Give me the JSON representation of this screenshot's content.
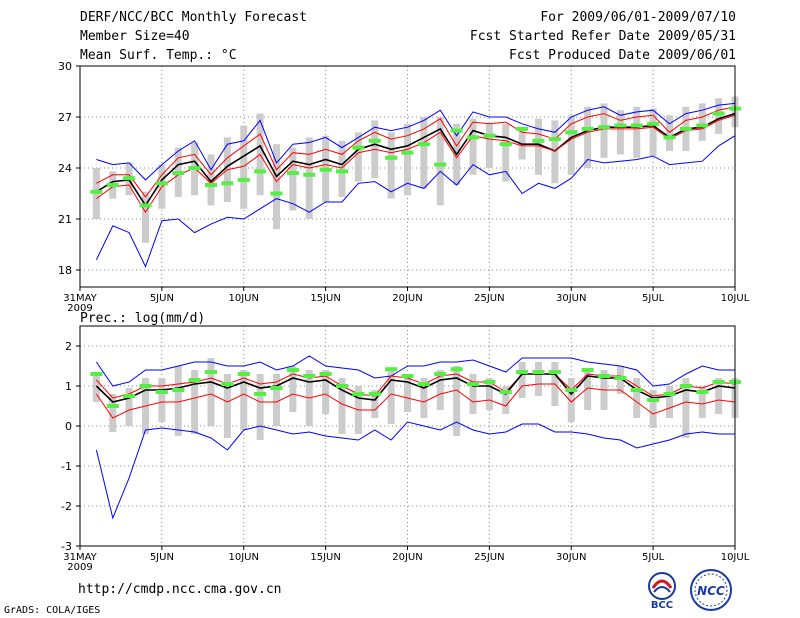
{
  "header": {
    "title": "DERF/NCC/BCC Monthly Forecast",
    "members": "Member Size=40",
    "variable": "Mean Surf. Temp.: °C",
    "period": "For 2009/06/01-2009/07/10",
    "started": "Fcst Started Refer Date 2009/05/31",
    "produced": "Fcst Produced Date 2009/06/01"
  },
  "lower_label": "Prec.: log(mm/d)",
  "footer": {
    "url": "http://cmdp.ncc.cma.gov.cn",
    "credit": "GrADS: COLA/IGES"
  },
  "logos": {
    "bcc": "BCC",
    "ncc": "NCC"
  },
  "colors": {
    "envelope": "#0000ff",
    "spread": "#ff0000",
    "mean": "#000000",
    "observed": "#55ee44",
    "box": "#cccccc",
    "grid": "#888888"
  },
  "chart_data": [
    {
      "type": "line",
      "title": "Mean Surf. Temp.: °C",
      "x_days": 41,
      "x_ticks": [
        {
          "day": 0,
          "label": "31MAY",
          "sub": "2009"
        },
        {
          "day": 5,
          "label": "5JUN"
        },
        {
          "day": 10,
          "label": "10JUN"
        },
        {
          "day": 15,
          "label": "15JUN"
        },
        {
          "day": 20,
          "label": "20JUN"
        },
        {
          "day": 25,
          "label": "25JUN"
        },
        {
          "day": 30,
          "label": "30JUN"
        },
        {
          "day": 35,
          "label": "5JUL"
        },
        {
          "day": 40,
          "label": "10JUL"
        }
      ],
      "ylim": [
        17,
        30
      ],
      "yticks": [
        18,
        21,
        24,
        27,
        30
      ],
      "grid": true,
      "series": [
        {
          "name": "ensemble max",
          "color": "#0000ff",
          "start_day": 1,
          "values": [
            24.5,
            24.2,
            24.3,
            23.3,
            24.2,
            25.0,
            25.6,
            23.9,
            25.4,
            25.6,
            26.8,
            24.3,
            25.4,
            25.5,
            25.8,
            25.2,
            25.8,
            26.4,
            26.2,
            26.4,
            26.8,
            27.4,
            25.9,
            27.3,
            27.0,
            27.0,
            26.6,
            26.3,
            26.1,
            27.0,
            27.4,
            27.6,
            27.1,
            27.3,
            27.4,
            26.6,
            27.2,
            27.4,
            27.7,
            27.8
          ]
        },
        {
          "name": "ensemble upper",
          "color": "#ff0000",
          "start_day": 1,
          "values": [
            23.1,
            23.6,
            23.6,
            22.3,
            23.6,
            24.6,
            24.8,
            23.6,
            24.6,
            25.3,
            26.0,
            23.9,
            24.9,
            24.8,
            25.1,
            24.8,
            25.6,
            26.1,
            25.7,
            25.9,
            26.3,
            26.9,
            25.3,
            26.7,
            26.6,
            26.7,
            26.1,
            26.0,
            25.7,
            26.6,
            27.0,
            27.2,
            26.8,
            27.0,
            27.1,
            26.1,
            26.8,
            27.0,
            27.4,
            27.6
          ]
        },
        {
          "name": "ensemble mean",
          "color": "#000000",
          "start_day": 1,
          "values": [
            22.6,
            23.2,
            23.3,
            21.8,
            23.3,
            24.2,
            24.4,
            23.2,
            24.1,
            24.7,
            25.3,
            23.5,
            24.4,
            24.2,
            24.5,
            24.2,
            25.1,
            25.4,
            25.1,
            25.3,
            25.8,
            26.3,
            24.8,
            26.2,
            25.9,
            25.8,
            25.4,
            25.4,
            25.0,
            25.8,
            26.2,
            26.4,
            26.4,
            26.4,
            26.5,
            25.8,
            26.3,
            26.4,
            26.9,
            27.2
          ]
        },
        {
          "name": "ensemble lower",
          "color": "#ff0000",
          "start_day": 1,
          "values": [
            22.2,
            22.9,
            23.0,
            21.4,
            22.9,
            23.6,
            24.0,
            23.1,
            23.9,
            24.1,
            24.8,
            23.2,
            24.2,
            24.0,
            24.2,
            24.0,
            24.9,
            25.1,
            24.9,
            25.1,
            25.5,
            26.1,
            24.6,
            25.9,
            25.7,
            25.6,
            25.3,
            25.3,
            25.0,
            25.7,
            26.1,
            26.3,
            26.3,
            26.3,
            26.4,
            25.7,
            26.2,
            26.3,
            26.8,
            27.1
          ]
        },
        {
          "name": "ensemble min",
          "color": "#0000ff",
          "start_day": 1,
          "values": [
            18.6,
            20.6,
            20.2,
            18.2,
            20.9,
            21.0,
            20.2,
            20.7,
            21.1,
            21.0,
            21.6,
            22.2,
            21.9,
            21.4,
            22.0,
            22.0,
            23.1,
            23.2,
            22.6,
            23.1,
            22.8,
            23.8,
            23.0,
            24.2,
            23.6,
            23.8,
            22.5,
            23.1,
            22.8,
            23.4,
            24.5,
            24.3,
            24.4,
            24.5,
            24.7,
            24.2,
            24.3,
            24.4,
            25.3,
            25.9
          ]
        }
      ],
      "boxes": {
        "start_day": 1,
        "low": [
          21.0,
          22.2,
          22.4,
          19.6,
          21.6,
          22.3,
          22.4,
          21.8,
          22.0,
          21.6,
          22.4,
          20.4,
          21.5,
          21.0,
          22.0,
          22.3,
          23.2,
          23.4,
          22.2,
          22.4,
          22.8,
          21.8,
          23.0,
          23.6,
          24.0,
          23.2,
          24.5,
          23.6,
          23.1,
          23.6,
          24.0,
          24.6,
          24.8,
          24.6,
          24.7,
          25.0,
          25.0,
          25.6,
          26.0,
          26.4
        ],
        "high": [
          24.0,
          23.8,
          24.3,
          22.6,
          24.2,
          25.2,
          25.5,
          24.8,
          25.8,
          26.5,
          27.2,
          25.4,
          25.2,
          25.8,
          25.9,
          25.6,
          26.1,
          26.8,
          26.1,
          26.6,
          27.0,
          27.0,
          26.6,
          26.9,
          26.6,
          26.6,
          26.3,
          26.9,
          26.8,
          27.1,
          27.6,
          27.8,
          27.4,
          27.6,
          27.5,
          27.1,
          27.6,
          27.8,
          28.1,
          28.2
        ]
      },
      "observed": {
        "start_day": 1,
        "values": [
          22.6,
          23.0,
          23.4,
          21.8,
          23.1,
          23.7,
          24.0,
          23.0,
          23.1,
          23.3,
          23.8,
          22.5,
          23.7,
          23.6,
          23.9,
          23.8,
          25.2,
          25.6,
          24.6,
          24.9,
          25.4,
          24.2,
          26.2,
          25.8,
          25.9,
          25.4,
          26.3,
          25.6,
          25.7,
          26.1,
          26.3,
          26.4,
          26.5,
          26.5,
          26.6,
          25.8,
          26.3,
          26.5,
          27.2,
          27.5
        ]
      }
    },
    {
      "type": "line",
      "title": "Prec.: log(mm/d)",
      "x_days": 41,
      "x_ticks": [
        {
          "day": 0,
          "label": "31MAY",
          "sub": "2009"
        },
        {
          "day": 5,
          "label": "5JUN"
        },
        {
          "day": 10,
          "label": "10JUN"
        },
        {
          "day": 15,
          "label": "15JUN"
        },
        {
          "day": 20,
          "label": "20JUN"
        },
        {
          "day": 25,
          "label": "25JUN"
        },
        {
          "day": 30,
          "label": "30JUN"
        },
        {
          "day": 35,
          "label": "5JUL"
        },
        {
          "day": 40,
          "label": "10JUL"
        }
      ],
      "ylim": [
        -3,
        2.5
      ],
      "yticks": [
        -3,
        -2,
        -1,
        0,
        1,
        2
      ],
      "grid": true,
      "series": [
        {
          "name": "ensemble max",
          "color": "#0000ff",
          "start_day": 1,
          "values": [
            1.6,
            1.0,
            1.1,
            1.4,
            1.4,
            1.5,
            1.6,
            1.6,
            1.5,
            1.5,
            1.6,
            1.4,
            1.5,
            1.75,
            1.5,
            1.45,
            1.4,
            1.2,
            1.25,
            1.5,
            1.5,
            1.6,
            1.6,
            1.65,
            1.5,
            1.35,
            1.7,
            1.7,
            1.7,
            1.7,
            1.6,
            1.55,
            1.5,
            1.4,
            1.0,
            1.05,
            1.3,
            1.5,
            1.4,
            1.4
          ]
        },
        {
          "name": "ensemble upper",
          "color": "#ff0000",
          "start_day": 1,
          "values": [
            1.15,
            0.7,
            0.8,
            1.0,
            1.0,
            1.05,
            1.1,
            1.2,
            1.05,
            1.2,
            1.05,
            1.1,
            1.3,
            1.2,
            1.25,
            1.0,
            0.8,
            0.75,
            1.25,
            1.2,
            1.05,
            1.25,
            1.3,
            1.1,
            1.1,
            0.85,
            1.3,
            1.3,
            1.3,
            0.9,
            1.3,
            1.25,
            1.25,
            1.0,
            0.75,
            0.8,
            1.0,
            0.95,
            1.1,
            1.05
          ]
        },
        {
          "name": "ensemble mean",
          "color": "#000000",
          "start_day": 1,
          "values": [
            1.0,
            0.6,
            0.7,
            0.9,
            0.9,
            0.95,
            1.05,
            1.1,
            0.95,
            1.1,
            0.95,
            1.0,
            1.2,
            1.1,
            1.15,
            0.9,
            0.7,
            0.65,
            1.15,
            1.1,
            0.95,
            1.15,
            1.2,
            1.0,
            1.0,
            0.8,
            1.3,
            1.3,
            1.3,
            0.8,
            1.25,
            1.2,
            1.2,
            0.9,
            0.7,
            0.75,
            0.9,
            0.85,
            1.0,
            0.95
          ]
        },
        {
          "name": "ensemble lower",
          "color": "#ff0000",
          "start_day": 1,
          "values": [
            0.8,
            0.2,
            0.4,
            0.5,
            0.6,
            0.6,
            0.7,
            0.8,
            0.6,
            0.8,
            0.6,
            0.6,
            0.8,
            0.7,
            0.8,
            0.55,
            0.4,
            0.4,
            0.8,
            0.7,
            0.6,
            0.8,
            0.9,
            0.6,
            0.65,
            0.5,
            1.0,
            1.05,
            1.05,
            0.6,
            0.95,
            0.9,
            0.9,
            0.6,
            0.3,
            0.45,
            0.6,
            0.55,
            0.65,
            0.6
          ]
        },
        {
          "name": "ensemble min",
          "color": "#0000ff",
          "start_day": 1,
          "values": [
            -0.6,
            -2.3,
            -1.3,
            -0.1,
            -0.05,
            -0.1,
            -0.15,
            -0.3,
            -0.6,
            -0.1,
            0.0,
            -0.1,
            -0.2,
            -0.15,
            -0.25,
            -0.3,
            -0.35,
            -0.1,
            -0.35,
            0.1,
            0.0,
            -0.1,
            0.1,
            -0.1,
            -0.2,
            -0.15,
            0.05,
            0.05,
            -0.15,
            -0.15,
            -0.2,
            -0.3,
            -0.35,
            -0.55,
            -0.45,
            -0.35,
            -0.2,
            -0.15,
            -0.2,
            -0.2
          ]
        }
      ],
      "boxes": {
        "start_day": 1,
        "low": [
          0.6,
          -0.15,
          0.0,
          -0.2,
          0.1,
          -0.25,
          -0.2,
          0.0,
          -0.3,
          -0.1,
          -0.35,
          0.0,
          0.35,
          0.0,
          0.3,
          -0.2,
          -0.2,
          0.2,
          0.05,
          0.35,
          0.2,
          0.4,
          -0.25,
          0.3,
          0.4,
          0.3,
          0.7,
          0.75,
          0.5,
          0.1,
          0.4,
          0.4,
          0.8,
          0.2,
          -0.05,
          0.2,
          -0.3,
          0.2,
          0.3,
          0.2
        ],
        "high": [
          1.35,
          0.8,
          0.95,
          1.2,
          1.2,
          1.5,
          1.4,
          1.7,
          1.3,
          1.4,
          1.3,
          1.3,
          1.5,
          1.4,
          1.4,
          1.2,
          1.0,
          0.9,
          1.4,
          1.3,
          1.2,
          1.4,
          1.5,
          1.3,
          1.2,
          1.0,
          1.6,
          1.6,
          1.6,
          1.2,
          1.4,
          1.4,
          1.5,
          1.2,
          0.9,
          1.0,
          1.2,
          1.0,
          1.2,
          1.2
        ]
      },
      "observed": {
        "start_day": 1,
        "values": [
          1.3,
          0.5,
          0.75,
          1.0,
          0.85,
          0.9,
          1.15,
          1.35,
          1.05,
          1.3,
          0.8,
          0.95,
          1.4,
          1.25,
          1.3,
          1.0,
          0.8,
          0.8,
          1.42,
          1.25,
          1.05,
          1.3,
          1.42,
          1.05,
          1.1,
          0.85,
          1.35,
          1.35,
          1.35,
          0.9,
          1.4,
          1.25,
          1.2,
          0.9,
          0.65,
          0.8,
          1.0,
          0.85,
          1.1,
          1.1
        ]
      }
    }
  ]
}
